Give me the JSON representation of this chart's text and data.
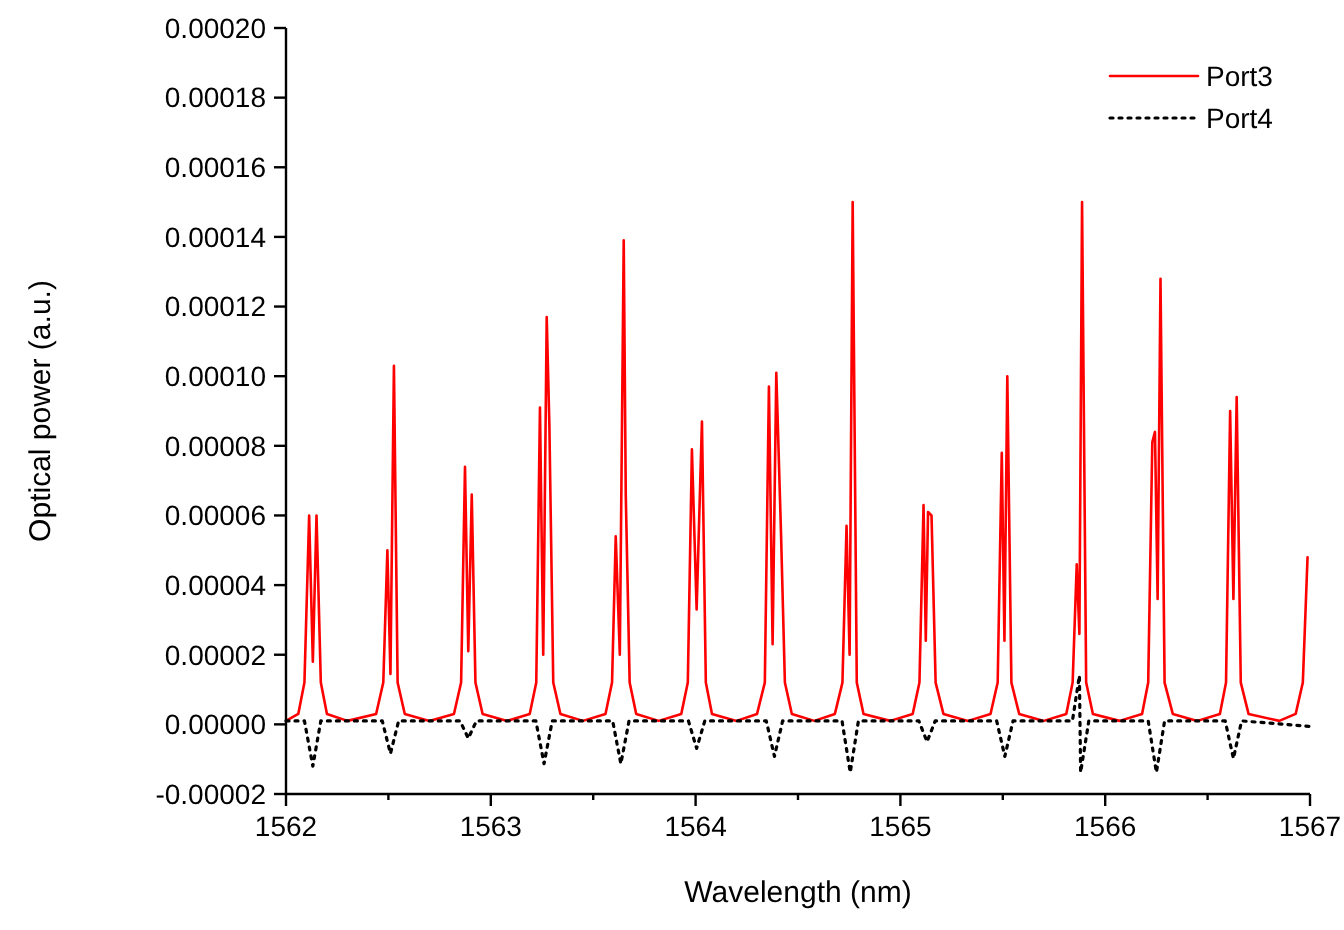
{
  "chart_data": {
    "type": "line",
    "xlabel": "Wavelength (nm)",
    "ylabel": "Optical power (a.u.)",
    "xlim": [
      1562,
      1567
    ],
    "xticks": [
      1562,
      {
        "value": 1562.5,
        "label": null
      },
      1563,
      {
        "value": 1563.5,
        "label": null
      },
      1564,
      {
        "value": 1564.5,
        "label": null
      },
      1565,
      {
        "value": 1565.5,
        "label": null
      },
      1566,
      {
        "value": 1566.5,
        "label": null
      },
      1567
    ],
    "ylim": [
      -2e-05,
      0.0002
    ],
    "yticks": [
      {
        "value": -2e-05,
        "label": "-0.00002"
      },
      {
        "value": 0,
        "label": "0.00000"
      },
      {
        "value": 2e-05,
        "label": "0.00002"
      },
      {
        "value": 4e-05,
        "label": "0.00004"
      },
      {
        "value": 6e-05,
        "label": "0.00006"
      },
      {
        "value": 8e-05,
        "label": "0.00008"
      },
      {
        "value": 0.0001,
        "label": "0.00010"
      },
      {
        "value": 0.00012,
        "label": "0.00012"
      },
      {
        "value": 0.00014,
        "label": "0.00014"
      },
      {
        "value": 0.00016,
        "label": "0.00016"
      },
      {
        "value": 0.00018,
        "label": "0.00018"
      },
      {
        "value": 0.0002,
        "label": "0.00020"
      }
    ],
    "grid": false,
    "legend": "top right",
    "marker": "none",
    "series": [
      {
        "name": "Port3",
        "color": "#ff0000",
        "line_style": "solid",
        "x": [
          1562.0,
          1562.06,
          1562.09,
          1562.113,
          1562.131,
          1562.149,
          1562.17,
          1562.2,
          1562.3,
          1562.44,
          1562.475,
          1562.495,
          1562.51,
          1562.527,
          1562.545,
          1562.58,
          1562.7,
          1562.82,
          1562.855,
          1562.874,
          1562.89,
          1562.907,
          1562.925,
          1562.96,
          1563.08,
          1563.19,
          1563.222,
          1563.24,
          1563.256,
          1563.273,
          1563.286,
          1563.305,
          1563.34,
          1563.45,
          1563.56,
          1563.592,
          1563.61,
          1563.63,
          1563.649,
          1563.659,
          1563.678,
          1563.71,
          1563.82,
          1563.93,
          1563.962,
          1563.982,
          1564.005,
          1564.031,
          1564.05,
          1564.08,
          1564.2,
          1564.3,
          1564.338,
          1564.358,
          1564.376,
          1564.394,
          1564.417,
          1564.436,
          1564.47,
          1564.58,
          1564.68,
          1564.717,
          1564.737,
          1564.752,
          1564.767,
          1564.787,
          1564.82,
          1564.95,
          1565.06,
          1565.093,
          1565.113,
          1565.124,
          1565.135,
          1565.152,
          1565.172,
          1565.21,
          1565.33,
          1565.44,
          1565.475,
          1565.495,
          1565.508,
          1565.522,
          1565.542,
          1565.58,
          1565.7,
          1565.81,
          1565.841,
          1565.861,
          1565.874,
          1565.887,
          1565.907,
          1565.94,
          1566.07,
          1566.18,
          1566.21,
          1566.23,
          1566.243,
          1566.256,
          1566.27,
          1566.29,
          1566.33,
          1566.45,
          1566.56,
          1566.59,
          1566.61,
          1566.626,
          1566.642,
          1566.662,
          1566.7,
          1566.85,
          1566.93,
          1566.965,
          1566.988
        ],
        "values": [
          1e-06,
          3e-06,
          1.2e-05,
          6e-05,
          1.8e-05,
          6e-05,
          1.2e-05,
          3e-06,
          1e-06,
          3e-06,
          1.2e-05,
          5e-05,
          1.45e-05,
          0.000103,
          1.2e-05,
          3e-06,
          1e-06,
          3e-06,
          1.2e-05,
          7.4e-05,
          2.1e-05,
          6.6e-05,
          1.2e-05,
          3e-06,
          1e-06,
          3e-06,
          1.2e-05,
          9.1e-05,
          2e-05,
          0.000117,
          8.6e-05,
          1.2e-05,
          3e-06,
          1e-06,
          3e-06,
          1.2e-05,
          5.4e-05,
          2e-05,
          0.000139,
          6.6e-05,
          1.2e-05,
          3e-06,
          1e-06,
          3e-06,
          1.2e-05,
          7.9e-05,
          3.3e-05,
          8.7e-05,
          1.2e-05,
          3e-06,
          1e-06,
          3e-06,
          1.2e-05,
          9.7e-05,
          2.3e-05,
          0.000101,
          5.5e-05,
          1.2e-05,
          3e-06,
          1e-06,
          3e-06,
          1.2e-05,
          5.7e-05,
          2e-05,
          0.00015,
          1.2e-05,
          3e-06,
          1e-06,
          3e-06,
          1.2e-05,
          6.3e-05,
          2.4e-05,
          6.1e-05,
          6e-05,
          1.2e-05,
          3e-06,
          1e-06,
          3e-06,
          1.2e-05,
          7.8e-05,
          2.4e-05,
          0.0001,
          1.2e-05,
          3e-06,
          1e-06,
          3e-06,
          1.2e-05,
          4.6e-05,
          2.6e-05,
          0.00015,
          1.2e-05,
          3e-06,
          1e-06,
          3e-06,
          1.2e-05,
          8.1e-05,
          8.4e-05,
          3.6e-05,
          0.000128,
          1.2e-05,
          3e-06,
          1e-06,
          3e-06,
          1.2e-05,
          9e-05,
          3.6e-05,
          9.4e-05,
          1.2e-05,
          3e-06,
          1e-06,
          3e-06,
          1.2e-05,
          4.8e-05
        ]
      },
      {
        "name": "Port4",
        "color": "#000000",
        "line_style": "dotted",
        "x": [
          1562.0,
          1562.09,
          1562.131,
          1562.17,
          1562.47,
          1562.51,
          1562.55,
          1562.85,
          1562.89,
          1562.93,
          1563.22,
          1563.26,
          1563.3,
          1563.595,
          1563.635,
          1563.675,
          1563.965,
          1564.005,
          1564.045,
          1564.345,
          1564.385,
          1564.425,
          1564.715,
          1564.755,
          1564.795,
          1565.09,
          1565.13,
          1565.17,
          1565.47,
          1565.51,
          1565.55,
          1565.84,
          1565.874,
          1565.88,
          1565.92,
          1566.21,
          1566.25,
          1566.29,
          1566.586,
          1566.626,
          1566.666,
          1567.0
        ],
        "values": [
          1e-06,
          1e-06,
          -1.2e-05,
          1e-06,
          1e-06,
          -8.4e-06,
          1e-06,
          1e-06,
          -4e-06,
          1e-06,
          1e-06,
          -1.13e-05,
          1e-06,
          1e-06,
          -1.13e-05,
          1e-06,
          1e-06,
          -6.9e-06,
          1e-06,
          1e-06,
          -9.2e-06,
          1e-06,
          1e-06,
          -1.38e-05,
          1e-06,
          1e-06,
          -5e-06,
          1e-06,
          1e-06,
          -9.2e-06,
          1e-06,
          1e-06,
          1.4e-05,
          -1.38e-05,
          1e-06,
          1e-06,
          -1.38e-05,
          1e-06,
          1e-06,
          -9.8e-06,
          1e-06,
          -6e-07
        ]
      }
    ]
  }
}
